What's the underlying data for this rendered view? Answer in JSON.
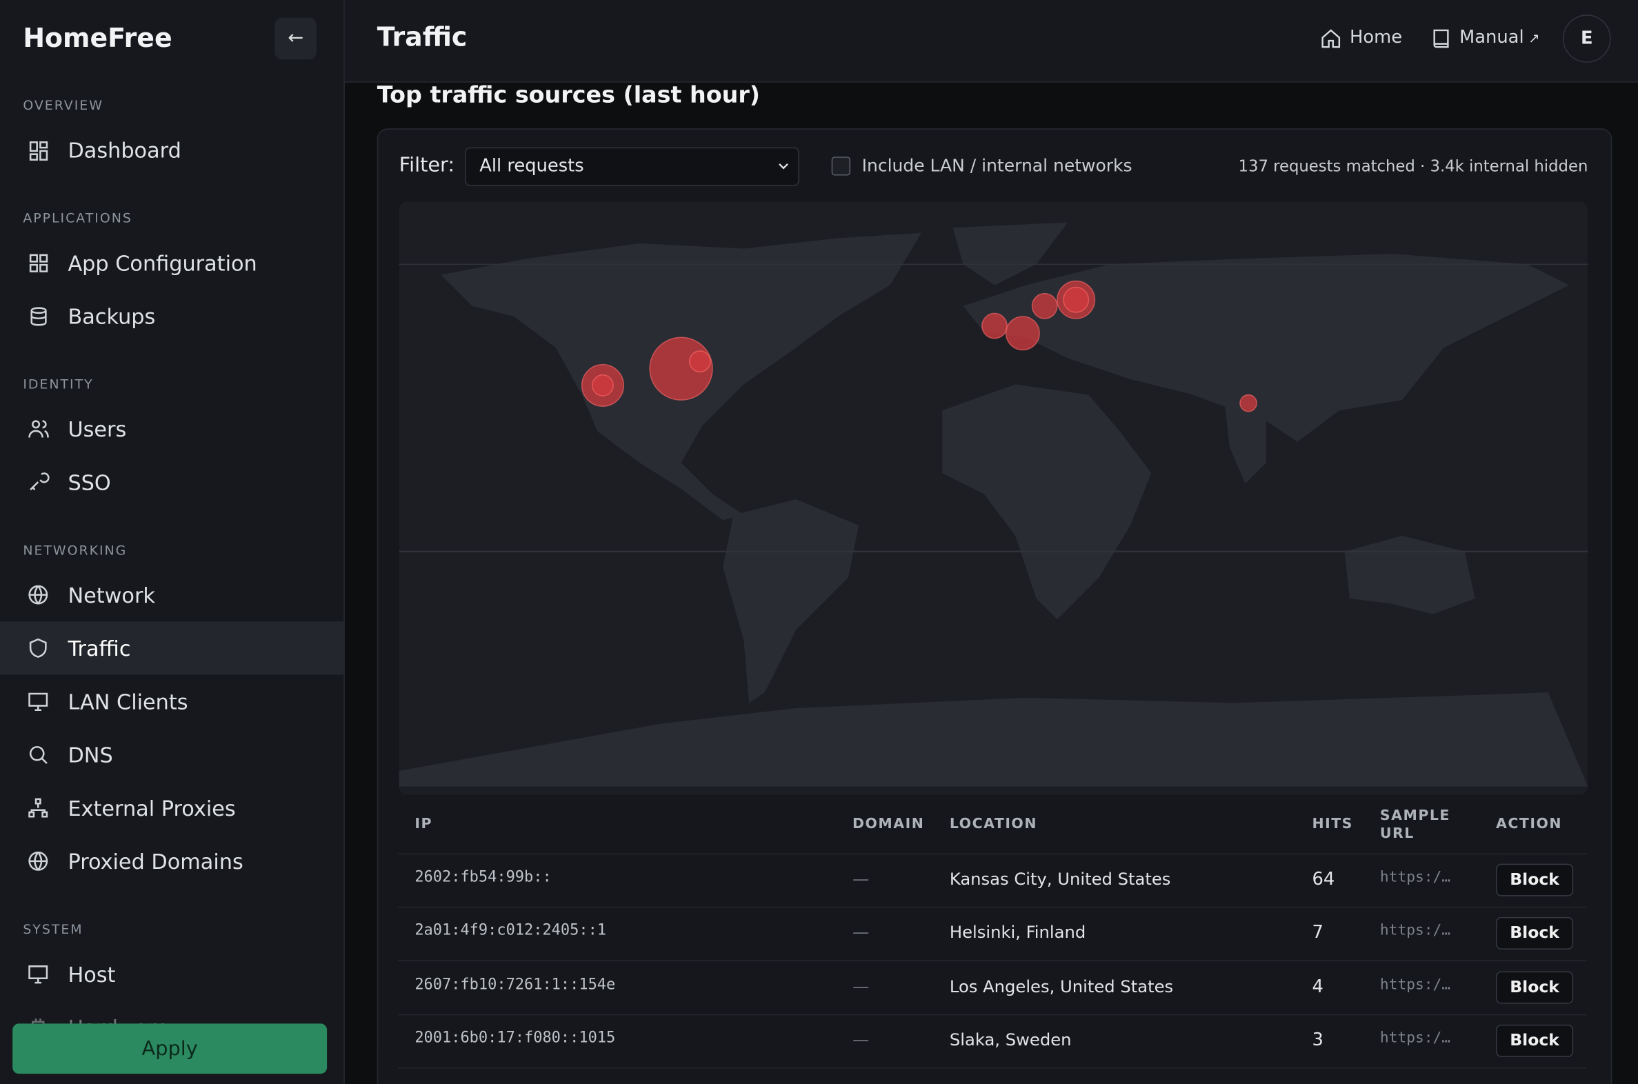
{
  "sidebar": {
    "brand": "HomeFree",
    "collapse": "←",
    "sections": [
      {
        "label": "OVERVIEW",
        "items": [
          "Dashboard"
        ]
      },
      {
        "label": "APPLICATIONS",
        "items": [
          "App Configuration",
          "Backups"
        ]
      },
      {
        "label": "IDENTITY",
        "items": [
          "Users",
          "SSO"
        ]
      },
      {
        "label": "NETWORKING",
        "items": [
          "Network",
          "Traffic",
          "LAN Clients",
          "DNS",
          "External Proxies",
          "Proxied Domains"
        ]
      },
      {
        "label": "SYSTEM",
        "items": [
          "Host",
          "Hardware"
        ]
      }
    ],
    "apply": "Apply"
  },
  "header": {
    "title": "Traffic",
    "nav": [
      "Home",
      "Manual"
    ],
    "manual_arrow": "↗",
    "avatar": "E"
  },
  "section": {
    "title": "Top traffic sources (last hour)",
    "filter_label": "Filter:",
    "filter_value": "All requests",
    "checkbox_label": "Include LAN / internal networks",
    "stats": "137 requests matched · 3.4k internal hidden"
  },
  "table": {
    "columns": [
      "IP",
      "DOMAIN",
      "LOCATION",
      "HITS",
      "SAMPLE URL",
      "ACTION"
    ],
    "rows": [
      [
        "2602:fb54:99b::",
        "—",
        "Kansas City, United States",
        "64",
        "https:/…",
        "Block"
      ],
      [
        "2a01:4f9:c012:2405::1",
        "—",
        "Helsinki, Finland",
        "7",
        "https:/…",
        "Block"
      ],
      [
        "2607:fb10:7261:1::154e",
        "—",
        "Los Angeles, United States",
        "4",
        "https:/…",
        "Block"
      ],
      [
        "2001:6b0:17:f080::1015",
        "—",
        "Slaka, Sweden",
        "3",
        "https:/…",
        "Block"
      ]
    ]
  }
}
